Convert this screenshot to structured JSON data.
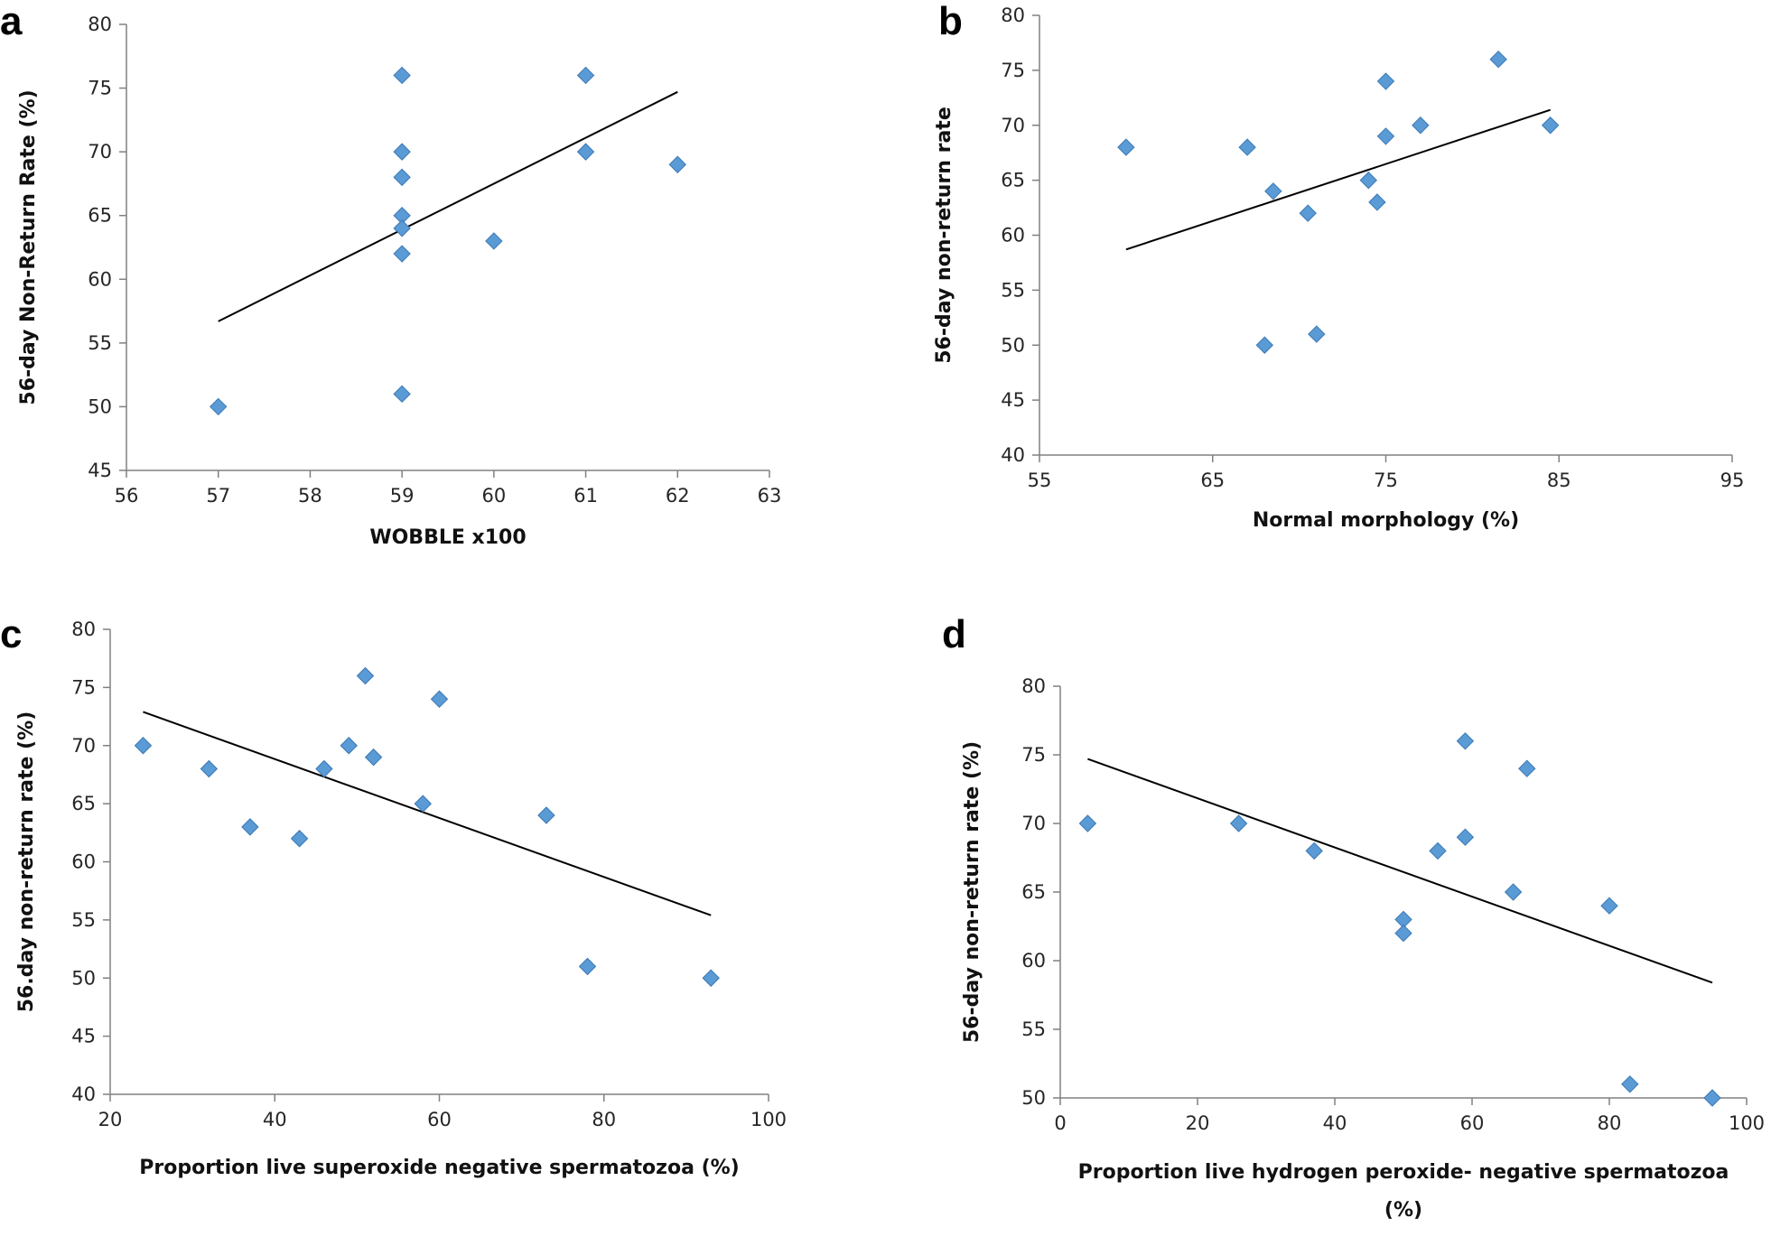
{
  "figure": {
    "marker_color": "#5B9BD5",
    "marker_edge": "#3A78B5",
    "line_color": "#000000",
    "axis_color": "#808080"
  },
  "chart_data": [
    {
      "panel": "a",
      "type": "scatter",
      "xlabel": "WOBBLE x100",
      "ylabel": "56-day Non-Return Rate (%)",
      "xlim": [
        56,
        63
      ],
      "xticks": [
        56,
        57,
        58,
        59,
        60,
        61,
        62,
        63
      ],
      "ylim": [
        45,
        80
      ],
      "yticks": [
        45,
        50,
        55,
        60,
        65,
        70,
        75,
        80
      ],
      "points": [
        [
          57,
          50
        ],
        [
          59,
          76
        ],
        [
          59,
          70
        ],
        [
          59,
          68
        ],
        [
          59,
          65
        ],
        [
          59,
          64
        ],
        [
          59,
          62
        ],
        [
          59,
          51
        ],
        [
          60,
          63
        ],
        [
          61,
          76
        ],
        [
          61,
          70
        ],
        [
          62,
          69
        ]
      ],
      "trendline": [
        [
          57,
          56.7
        ],
        [
          62,
          74.7
        ]
      ]
    },
    {
      "panel": "b",
      "type": "scatter",
      "xlabel": "Normal morphology  (%)",
      "ylabel": "56-day non-return rate",
      "xlim": [
        55,
        95
      ],
      "xticks": [
        55,
        65,
        75,
        85,
        95
      ],
      "ylim": [
        40,
        80
      ],
      "yticks": [
        40,
        45,
        50,
        55,
        60,
        65,
        70,
        75,
        80
      ],
      "points": [
        [
          60,
          68
        ],
        [
          67,
          68
        ],
        [
          68,
          50
        ],
        [
          68.5,
          64
        ],
        [
          70.5,
          62
        ],
        [
          71,
          51
        ],
        [
          74,
          65
        ],
        [
          74.5,
          63
        ],
        [
          75,
          74
        ],
        [
          75,
          69
        ],
        [
          77,
          70
        ],
        [
          81.5,
          76
        ],
        [
          84.5,
          70
        ]
      ],
      "trendline": [
        [
          60,
          58.7
        ],
        [
          84.5,
          71.4
        ]
      ]
    },
    {
      "panel": "c",
      "type": "scatter",
      "xlabel": "Proportion live superoxide negative spermatozoa (%)",
      "ylabel": "56.day non-return rate (%)",
      "xlim": [
        20,
        100
      ],
      "xticks": [
        20,
        40,
        60,
        80,
        100
      ],
      "ylim": [
        40,
        80
      ],
      "yticks": [
        40,
        45,
        50,
        55,
        60,
        65,
        70,
        75,
        80
      ],
      "points": [
        [
          24,
          70
        ],
        [
          32,
          68
        ],
        [
          37,
          63
        ],
        [
          43,
          62
        ],
        [
          46,
          68
        ],
        [
          49,
          70
        ],
        [
          51,
          76
        ],
        [
          52,
          69
        ],
        [
          58,
          65
        ],
        [
          60,
          74
        ],
        [
          73,
          64
        ],
        [
          78,
          51
        ],
        [
          93,
          50
        ]
      ],
      "trendline": [
        [
          24,
          72.9
        ],
        [
          93,
          55.4
        ]
      ]
    },
    {
      "panel": "d",
      "type": "scatter",
      "xlabel": "Proportion live hydrogen peroxide- negative spermatozoa",
      "xlabel2": "(%)",
      "ylabel": "56-day non-return rate (%)",
      "xlim": [
        0,
        100
      ],
      "xticks": [
        0,
        20,
        40,
        60,
        80,
        100
      ],
      "ylim": [
        50,
        80
      ],
      "yticks": [
        50,
        55,
        60,
        65,
        70,
        75,
        80
      ],
      "points": [
        [
          4,
          70
        ],
        [
          26,
          70
        ],
        [
          37,
          68
        ],
        [
          50,
          63
        ],
        [
          50,
          62
        ],
        [
          55,
          68
        ],
        [
          59,
          76
        ],
        [
          59,
          69
        ],
        [
          66,
          65
        ],
        [
          68,
          74
        ],
        [
          80,
          64
        ],
        [
          83,
          51
        ],
        [
          95,
          50
        ]
      ],
      "trendline": [
        [
          4,
          74.7
        ],
        [
          95,
          58.4
        ]
      ]
    }
  ]
}
